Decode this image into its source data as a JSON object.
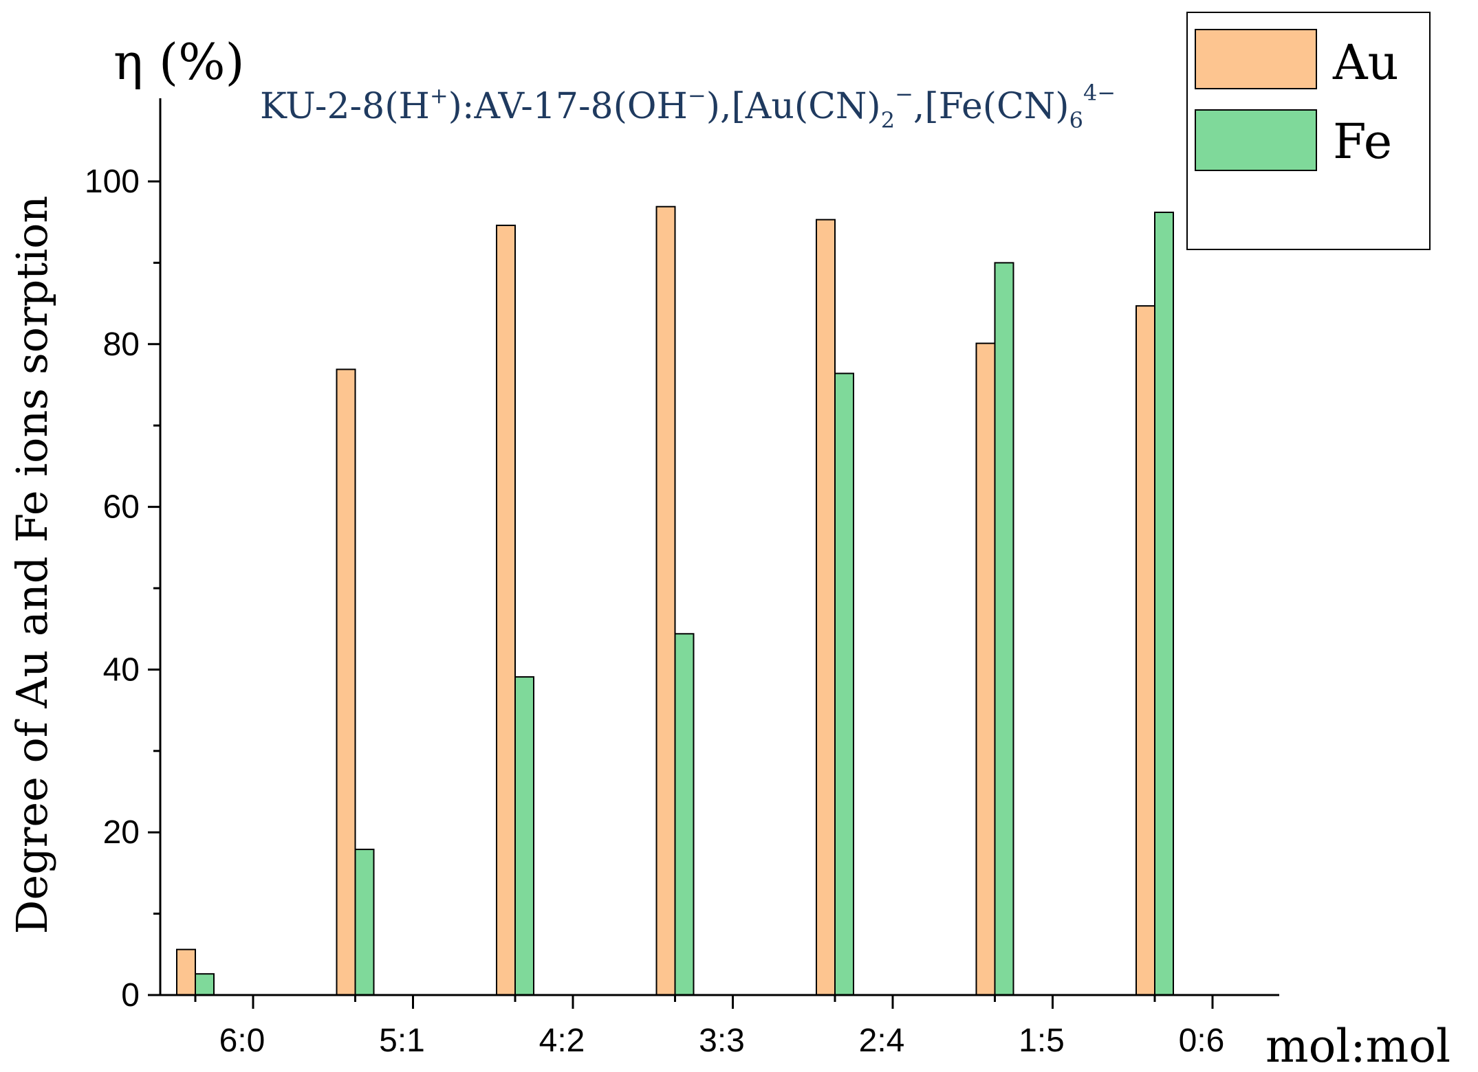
{
  "chart_data": {
    "type": "bar",
    "title": "KU-2-8(H⁺):AV-17-8(OH⁻),[Au(CN)₂]⁻,[Fe(CN)₆]⁴⁻",
    "title_parts": {
      "p1": "KU-2-8(H",
      "p1_sup": "+",
      "p2": "):AV-17-8(OH",
      "p2_sup": "−",
      "p3": "),[Au(CN)",
      "p3_sub": "2",
      "p3_sup": "−",
      "p4": ",[Fe(CN)",
      "p4_sub": "6",
      "p4_sup": "4−"
    },
    "unit_label": "η (%)",
    "xlabel": "mol:mol",
    "ylabel": "Degree of Au and Fe ions sorption",
    "categories": [
      "6:0",
      "5:1",
      "4:2",
      "3:3",
      "2:4",
      "1:5",
      "0:6"
    ],
    "series": [
      {
        "name": "Au",
        "color": "#fdc590",
        "values": [
          5.6,
          76.9,
          94.6,
          96.9,
          95.3,
          80.1,
          84.7
        ]
      },
      {
        "name": "Fe",
        "color": "#7fd99a",
        "values": [
          2.6,
          17.9,
          39.1,
          44.4,
          76.4,
          90.0,
          96.2
        ]
      }
    ],
    "ylim": [
      0,
      110
    ],
    "yticks": [
      0,
      20,
      40,
      60,
      80,
      100
    ],
    "grid": false,
    "legend_position": "top-right"
  }
}
